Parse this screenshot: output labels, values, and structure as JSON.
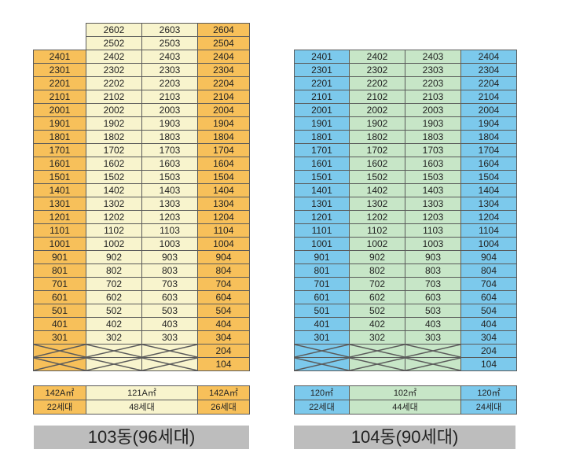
{
  "colors": {
    "b103_end": "#f7c05a",
    "b103_mid": "#f8f4cd",
    "b104_end": "#7cc9ec",
    "b104_mid": "#c7e6c7",
    "grid": "#5a5a5a",
    "label_bar": "#bdbdbd"
  },
  "icons": [
    "cross-out-icon"
  ],
  "buildings": [
    {
      "id": "b103",
      "title": "103동(96세대)",
      "top_units": [
        [
          "",
          "2602",
          "2603",
          "2604"
        ],
        [
          "",
          "2502",
          "2503",
          "2504"
        ]
      ],
      "floors": [
        24,
        23,
        22,
        21,
        20,
        19,
        18,
        17,
        16,
        15,
        14,
        13,
        12,
        11,
        10,
        9,
        8,
        7,
        6,
        5,
        4,
        3
      ],
      "bottom_rows": [
        [
          "X",
          "X",
          "X",
          "204"
        ],
        [
          "X",
          "X",
          "X",
          "104"
        ]
      ],
      "summary": {
        "types": [
          "142A㎡",
          "121A㎡",
          "142A㎡"
        ],
        "counts": [
          "22세대",
          "48세대",
          "26세대"
        ]
      }
    },
    {
      "id": "b104",
      "title": "104동(90세대)",
      "top_units": [],
      "floors": [
        24,
        23,
        22,
        21,
        20,
        19,
        18,
        17,
        16,
        15,
        14,
        13,
        12,
        11,
        10,
        9,
        8,
        7,
        6,
        5,
        4,
        3
      ],
      "bottom_rows": [
        [
          "X",
          "X",
          "X",
          "204"
        ],
        [
          "X",
          "X",
          "X",
          "104"
        ]
      ],
      "summary": {
        "types": [
          "120㎡",
          "102㎡",
          "120㎡"
        ],
        "counts": [
          "22세대",
          "44세대",
          "24세대"
        ]
      }
    }
  ]
}
